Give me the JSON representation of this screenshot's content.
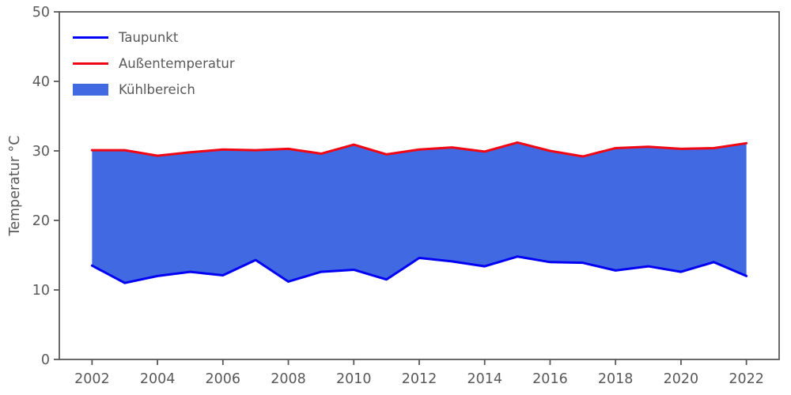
{
  "chart": {
    "legend": {
      "taupunkt_label": "Taupunkt",
      "aussentemperatur_label": "Außentemperatur",
      "kuehlbereich_label": "Kühlbereich"
    }
  },
  "chart_data": {
    "type": "area",
    "title": "",
    "xlabel": "",
    "ylabel": "Temperatur °C",
    "x": [
      2002,
      2003,
      2004,
      2005,
      2006,
      2007,
      2008,
      2009,
      2010,
      2011,
      2012,
      2013,
      2014,
      2015,
      2016,
      2017,
      2018,
      2019,
      2020,
      2021,
      2022
    ],
    "series": [
      {
        "name": "Taupunkt",
        "color": "#0000f5",
        "values": [
          13.5,
          11.0,
          12.0,
          12.6,
          12.1,
          14.3,
          11.2,
          12.6,
          12.9,
          11.5,
          14.6,
          14.1,
          13.4,
          14.8,
          14.0,
          13.9,
          12.8,
          13.4,
          12.6,
          14.0,
          12.0
        ]
      },
      {
        "name": "Außentemperatur",
        "color": "#f00713",
        "values": [
          30.1,
          30.1,
          29.3,
          29.8,
          30.2,
          30.1,
          30.3,
          29.6,
          30.9,
          29.5,
          30.2,
          30.5,
          29.9,
          31.2,
          30.0,
          29.2,
          30.4,
          30.6,
          30.3,
          30.4,
          31.1
        ]
      }
    ],
    "fill": {
      "name": "Kühlbereich",
      "color": "#4169e1"
    },
    "xlim": [
      2001,
      2023
    ],
    "ylim": [
      0,
      50
    ],
    "xticks": [
      2002,
      2004,
      2006,
      2008,
      2010,
      2012,
      2014,
      2016,
      2018,
      2020,
      2022
    ],
    "yticks": [
      0,
      10,
      20,
      30,
      40,
      50
    ],
    "grid": false,
    "legend_position": "upper-left",
    "axis_color": "#595959",
    "text_color": "#595959"
  }
}
